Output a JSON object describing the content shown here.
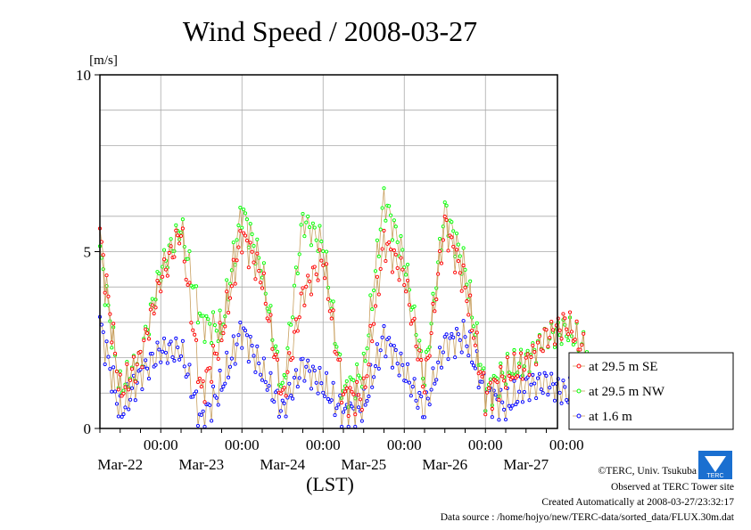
{
  "chart_data": {
    "type": "line",
    "title": "Wind Speed / 2008-03-27",
    "ylabel": "[m/s]",
    "xlabel": "(LST)",
    "ylim": [
      0,
      10
    ],
    "yticks": [
      "0",
      "5",
      "10"
    ],
    "time_ticks": [
      {
        "time": "00:00",
        "date": "Mar-22"
      },
      {
        "time": "00:00",
        "date": "Mar-23"
      },
      {
        "time": "00:00",
        "date": "Mar-24"
      },
      {
        "time": "00:00",
        "date": "Mar-25"
      },
      {
        "time": "00:00",
        "date": "Mar-26"
      },
      {
        "time": "00:00",
        "date": "Mar-27"
      }
    ],
    "grid": true,
    "legend_position": "bottom-right outside",
    "x_unit": "days from start of plotted window (2008-03-21 06:00 LST)",
    "series": [
      {
        "name": "at 29.5 m SE",
        "color": "#ff0000",
        "x": [
          0.0,
          0.25,
          0.5,
          0.75,
          1.0,
          1.25,
          1.5,
          1.75,
          2.0,
          2.25,
          2.5,
          2.75,
          3.0,
          3.25,
          3.5,
          3.75,
          4.0,
          4.25,
          4.5,
          4.75,
          5.0,
          5.25,
          5.5,
          5.75,
          6.0
        ],
        "values": [
          5.5,
          1.0,
          2.0,
          4.2,
          5.6,
          1.0,
          2.6,
          5.5,
          4.2,
          0.8,
          3.8,
          4.8,
          0.9,
          0.9,
          5.3,
          4.3,
          1.2,
          5.8,
          4.0,
          0.9,
          1.5,
          1.8,
          2.6,
          3.0,
          2.1
        ]
      },
      {
        "name": "at 29.5 m NW",
        "color": "#00ff00",
        "x": [
          0.0,
          0.25,
          0.5,
          0.75,
          1.0,
          1.25,
          1.5,
          1.75,
          2.0,
          2.25,
          2.5,
          2.75,
          3.0,
          3.25,
          3.5,
          3.75,
          4.0,
          4.25,
          4.5,
          4.75,
          5.0,
          5.25,
          5.5,
          5.75,
          6.0
        ],
        "values": [
          5.0,
          1.1,
          2.0,
          4.5,
          5.7,
          3.0,
          2.8,
          6.2,
          4.5,
          1.0,
          5.9,
          5.2,
          1.0,
          1.6,
          6.5,
          4.8,
          1.4,
          6.2,
          4.5,
          1.0,
          1.6,
          1.9,
          2.6,
          2.8,
          2.2
        ]
      },
      {
        "name": "at 1.6 m",
        "color": "#0000ff",
        "x": [
          0.0,
          0.25,
          0.5,
          0.75,
          1.0,
          1.25,
          1.5,
          1.75,
          2.0,
          2.25,
          2.5,
          2.75,
          3.0,
          3.25,
          3.5,
          3.75,
          4.0,
          4.25,
          4.5,
          4.75,
          5.0,
          5.25,
          5.5,
          5.75,
          6.0
        ],
        "values": [
          3.0,
          0.4,
          1.5,
          2.2,
          2.2,
          0.2,
          1.2,
          2.8,
          1.6,
          0.5,
          1.8,
          1.2,
          0.4,
          0.6,
          2.6,
          1.6,
          0.5,
          2.4,
          2.6,
          1.0,
          0.6,
          1.2,
          1.3,
          1.0,
          1.0
        ]
      }
    ]
  },
  "credits": {
    "copyright": "©TERC, Univ. Tsukuba",
    "site": "Observed at TERC Tower site",
    "created": "Created Automatically at 2008-03-27/23:32:17",
    "source": "Data source : /home/hojyo/new/TERC-data/sorted_data/FLUX.30m.dat"
  },
  "logo": {
    "text": "TERC",
    "color": "#1a6fd0"
  }
}
